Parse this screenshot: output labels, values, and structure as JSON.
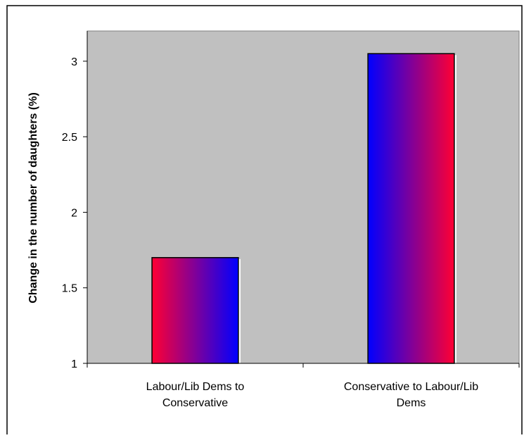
{
  "chart_data": {
    "type": "bar",
    "title": "",
    "xlabel": "",
    "ylabel": "Change in the number of daughters (%)",
    "categories": [
      [
        "Labour/Lib Dems to",
        "Conservative"
      ],
      [
        "Conservative to Labour/Lib",
        "Dems"
      ]
    ],
    "values": [
      1.7,
      3.05
    ],
    "ylim": [
      1,
      3.2
    ],
    "yticks": [
      "1",
      "1.5",
      "2",
      "2.5",
      "3"
    ],
    "ytick_values": [
      1,
      1.5,
      2,
      2.5,
      3
    ],
    "grid": false,
    "legend": "none",
    "colors": {
      "plot_background": "#c0c0c0",
      "bar_gradients": [
        [
          "#ff0033",
          "#0000ff"
        ],
        [
          "#0000ff",
          "#ff0033"
        ]
      ],
      "bar_edge": "#000000"
    }
  }
}
